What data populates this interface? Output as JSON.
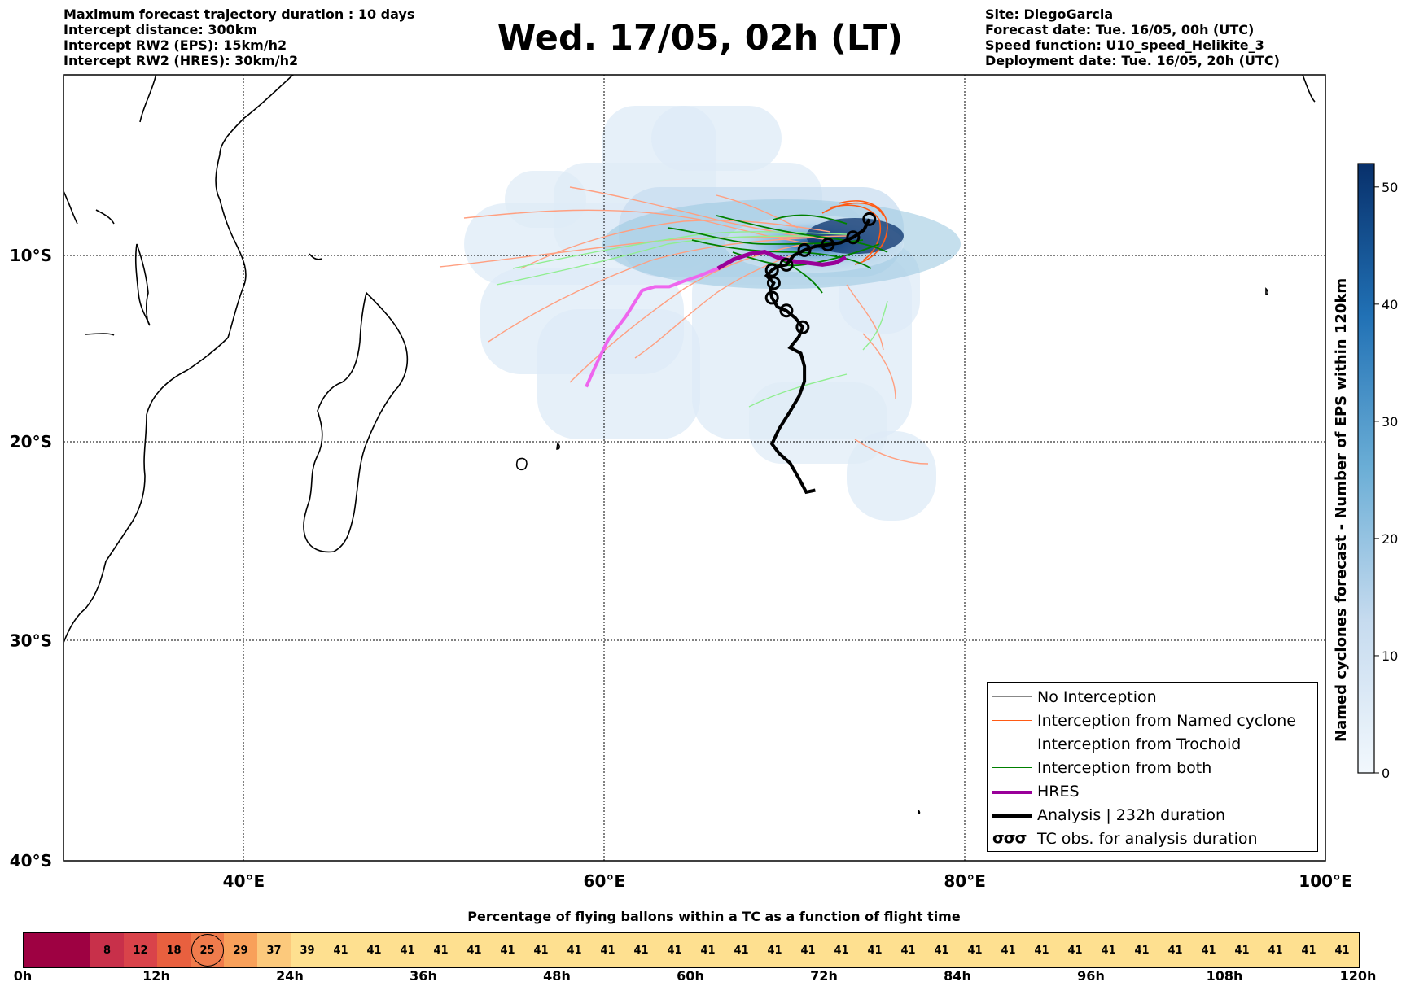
{
  "header": {
    "left": [
      "Maximum forecast trajectory duration : 10 days",
      "Intercept distance: 300km",
      "Intercept RW2 (EPS):  15km/h2",
      "Intercept RW2 (HRES): 30km/h2"
    ],
    "right": [
      "Site: DiegoGarcia",
      "Forecast date: Tue. 16/05, 00h (UTC)",
      "Speed function: U10_speed_Helikite_3",
      "Deployment date: Tue. 16/05, 20h (UTC)"
    ],
    "title": "Wed. 17/05, 02h (LT)"
  },
  "map": {
    "lon_range": [
      30,
      100
    ],
    "lat_range": [
      -40,
      0
    ],
    "lon_ticks": [
      {
        "value": 40,
        "label": "40°E"
      },
      {
        "value": 60,
        "label": "60°E"
      },
      {
        "value": 80,
        "label": "80°E"
      },
      {
        "value": 100,
        "label": "100°E"
      }
    ],
    "lat_ticks": [
      {
        "value": -10,
        "label": "10°S"
      },
      {
        "value": -20,
        "label": "20°S"
      },
      {
        "value": -30,
        "label": "30°S"
      },
      {
        "value": -40,
        "label": "40°S"
      }
    ],
    "colors": {
      "no_interception": "#888888",
      "named_cyclone": "#ff5a14",
      "trochoid": "#808000",
      "both": "#008000",
      "hres": "#990099",
      "analysis": "#000000",
      "eps_member_light": "#ff9f80",
      "eps_member_green": "#90ee90",
      "hres_pink": "#ee66ee"
    },
    "analysis_track": [
      [
        71.7,
        -22.5
      ],
      [
        71.2,
        -22.6
      ],
      [
        70.8,
        -21.9
      ],
      [
        70.3,
        -21.1
      ],
      [
        69.7,
        -20.6
      ],
      [
        69.3,
        -20.1
      ],
      [
        69.7,
        -19.3
      ],
      [
        70.3,
        -18.4
      ],
      [
        70.8,
        -17.6
      ],
      [
        71.1,
        -16.8
      ],
      [
        71.1,
        -16.0
      ],
      [
        70.9,
        -15.3
      ],
      [
        70.3,
        -15.0
      ],
      [
        70.8,
        -14.4
      ],
      [
        71.0,
        -13.9
      ],
      [
        70.6,
        -13.4
      ],
      [
        70.1,
        -13.0
      ],
      [
        69.6,
        -12.8
      ],
      [
        69.3,
        -12.3
      ],
      [
        69.2,
        -11.9
      ],
      [
        69.4,
        -11.5
      ],
      [
        69.0,
        -11.1
      ],
      [
        69.3,
        -10.8
      ],
      [
        69.6,
        -10.6
      ],
      [
        70.1,
        -10.5
      ],
      [
        70.5,
        -10.0
      ],
      [
        71.1,
        -9.7
      ],
      [
        71.7,
        -9.5
      ],
      [
        72.4,
        -9.4
      ],
      [
        73.1,
        -9.3
      ],
      [
        73.8,
        -9.0
      ],
      [
        74.4,
        -8.6
      ],
      [
        74.7,
        -8.0
      ]
    ],
    "hres_track": [
      [
        59.0,
        -17.1
      ],
      [
        59.5,
        -16.0
      ],
      [
        60.2,
        -14.6
      ],
      [
        61.2,
        -13.3
      ],
      [
        62.1,
        -11.9
      ],
      [
        62.8,
        -11.7
      ],
      [
        63.6,
        -11.7
      ],
      [
        64.4,
        -11.4
      ],
      [
        65.3,
        -11.1
      ],
      [
        66.3,
        -10.7
      ],
      [
        67.2,
        -10.2
      ],
      [
        68.1,
        -9.9
      ],
      [
        68.9,
        -9.8
      ],
      [
        69.6,
        -10.1
      ],
      [
        70.4,
        -10.3
      ],
      [
        71.3,
        -10.4
      ],
      [
        72.1,
        -10.5
      ],
      [
        72.8,
        -10.4
      ],
      [
        73.4,
        -10.1
      ]
    ],
    "eps_colorbar": {
      "label": "Named cyclones forecast - Number of EPS within 120km",
      "min": 0,
      "max": 52,
      "ticks": [
        0,
        10,
        20,
        30,
        40,
        50
      ]
    }
  },
  "legend": {
    "items": [
      {
        "label": "No Interception",
        "kind": "line",
        "color_key": "no_interception"
      },
      {
        "label": "Interception from Named cyclone",
        "kind": "line",
        "color_key": "named_cyclone"
      },
      {
        "label": "Interception from Trochoid",
        "kind": "line",
        "color_key": "trochoid"
      },
      {
        "label": "Interception from both",
        "kind": "line",
        "color_key": "both"
      },
      {
        "label": "HRES",
        "kind": "thick",
        "color_key": "hres"
      },
      {
        "label": "Analysis | 232h duration",
        "kind": "thick",
        "color_key": "analysis"
      },
      {
        "label": "TC obs. for analysis duration",
        "kind": "symbol",
        "color_key": "analysis"
      }
    ]
  },
  "strip": {
    "title": "Percentage of flying ballons within a TC as a function of flight time",
    "values": [
      "",
      "",
      "8",
      "12",
      "18",
      "25",
      "29",
      "37",
      "39",
      "41",
      "41",
      "41",
      "41",
      "41",
      "41",
      "41",
      "41",
      "41",
      "41",
      "41",
      "41",
      "41",
      "41",
      "41",
      "41",
      "41",
      "41",
      "41",
      "41",
      "41",
      "41",
      "41",
      "41",
      "41",
      "41",
      "41",
      "41",
      "41",
      "41",
      "41"
    ],
    "marked_index": 5,
    "ticks": [
      "0h",
      "12h",
      "24h",
      "36h",
      "48h",
      "60h",
      "72h",
      "84h",
      "96h",
      "108h",
      "120h"
    ]
  }
}
